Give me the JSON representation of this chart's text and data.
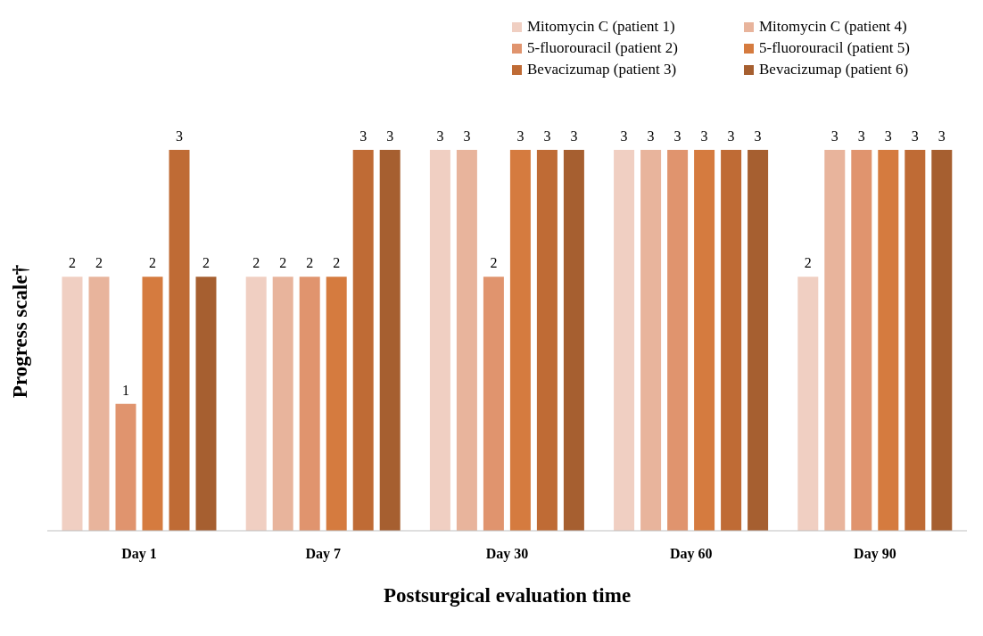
{
  "chart_data": {
    "type": "bar",
    "xlabel": "Postsurgical evaluation time",
    "ylabel": "Progress scale†",
    "categories": [
      "Day 1",
      "Day 7",
      "Day 30",
      "Day 60",
      "Day 90"
    ],
    "series": [
      {
        "name": "Mitomycin C (patient 1)",
        "color": "#f0cfc2",
        "values": [
          2,
          2,
          3,
          3,
          2
        ]
      },
      {
        "name": "Mitomycin C (patient 4)",
        "color": "#e8b49c",
        "values": [
          2,
          2,
          3,
          3,
          3
        ]
      },
      {
        "name": "5-fluorouracil (patient 2)",
        "color": "#e0946e",
        "values": [
          1,
          2,
          2,
          3,
          3
        ]
      },
      {
        "name": "5-fluorouracil (patient 5)",
        "color": "#d57b3f",
        "values": [
          2,
          2,
          3,
          3,
          3
        ]
      },
      {
        "name": "Bevacizumap (patient 3)",
        "color": "#bf6b35",
        "values": [
          3,
          3,
          3,
          3,
          3
        ]
      },
      {
        "name": "Bevacizumap (patient 6)",
        "color": "#a65f30",
        "values": [
          2,
          3,
          3,
          3,
          3
        ]
      }
    ],
    "ylim": [
      0,
      3
    ],
    "data_labels": true,
    "legend": "top right",
    "grid": false,
    "tick_labels": "x"
  }
}
